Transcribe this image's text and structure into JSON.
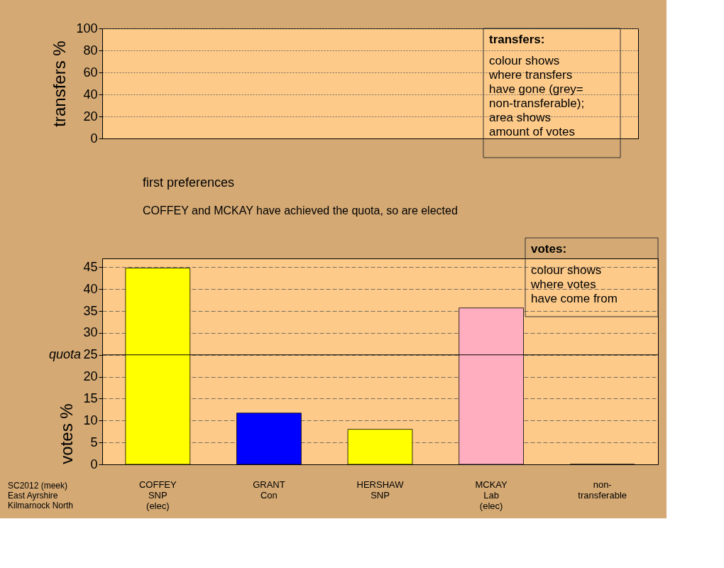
{
  "chart_data": [
    {
      "type": "bar",
      "categories": [
        null,
        null,
        null,
        null,
        null
      ],
      "values": [
        null,
        null,
        null,
        null,
        null
      ],
      "ylabel": "transfers %",
      "ylim": [
        0,
        100
      ],
      "yticks": [
        0,
        20,
        40,
        60,
        80,
        100
      ],
      "grid": "y",
      "tick_labels": "y",
      "annotations": [
        "transfers:\ncolour shows\nwhere transfers\nhave gone (grey=\nnon-transferable);\narea shows\namount of votes"
      ]
    },
    {
      "type": "bar",
      "title": "first preferences",
      "subtitle": "COFFEY and MCKAY have achieved the quota, so are elected",
      "categories": [
        "COFFEY\nSNP\n(elec)",
        "GRANT\nCon",
        "HERSHAW\nSNP",
        "MCKAY\nLab\n(elec)",
        "non-\ntransferable"
      ],
      "values": [
        44.8,
        11.7,
        8.0,
        35.7,
        0
      ],
      "colors": [
        "#ffff00",
        "#0000ff",
        "#ffff00",
        "#ffaec0",
        "#b0b0b0"
      ],
      "ylabel": "votes %",
      "ylim": [
        0,
        47
      ],
      "yticks": [
        0,
        5,
        10,
        15,
        20,
        25,
        30,
        35,
        40,
        45
      ],
      "grid": "y",
      "ref_lines": [
        {
          "axis": "y",
          "value": 25,
          "label": "quota"
        }
      ],
      "annotations": [
        "votes:\ncolour shows\nwhere votes\nhave come from",
        "SC2012 (meek)\nEast Ayrshire\nKilmarnock North"
      ]
    }
  ]
}
